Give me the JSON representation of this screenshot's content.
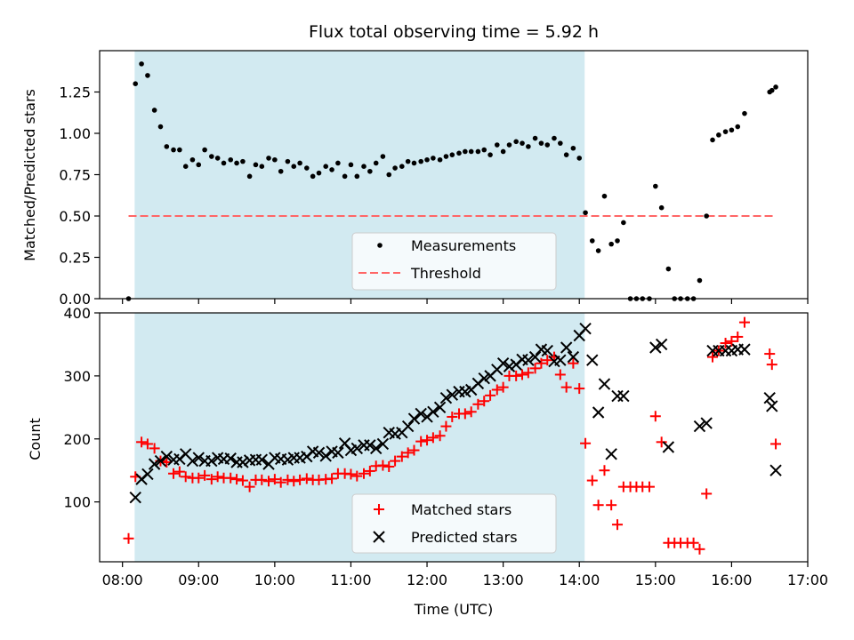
{
  "chart_data": {
    "type": "scatter",
    "title": "Flux total observing time = 5.92 h",
    "xlabel": "Time (UTC)",
    "x_ticks": [
      "08:00",
      "09:00",
      "10:00",
      "11:00",
      "12:00",
      "13:00",
      "14:00",
      "15:00",
      "16:00",
      "17:00"
    ],
    "xlim_hours": [
      7.7,
      17.0
    ],
    "shaded_interval_hours": [
      8.16,
      14.07
    ],
    "colors": {
      "shade": "#add8e6",
      "measurements": "#000000",
      "threshold": "#ff6666",
      "matched": "#ff0000",
      "predicted": "#000000"
    },
    "top_panel": {
      "ylabel": "Matched/Predicted stars",
      "ylim": [
        0,
        1.5
      ],
      "y_ticks": [
        "0.00",
        "0.25",
        "0.50",
        "0.75",
        "1.00",
        "1.25"
      ],
      "threshold": 0.5,
      "threshold_x_range": [
        8.08,
        16.58
      ],
      "legend": {
        "location": "lower center",
        "entries": [
          "Measurements",
          "Threshold"
        ]
      },
      "measurements": [
        [
          8.08,
          0.0
        ],
        [
          8.17,
          1.3
        ],
        [
          8.25,
          1.42
        ],
        [
          8.33,
          1.35
        ],
        [
          8.42,
          1.14
        ],
        [
          8.5,
          1.04
        ],
        [
          8.58,
          0.92
        ],
        [
          8.67,
          0.9
        ],
        [
          8.75,
          0.9
        ],
        [
          8.83,
          0.8
        ],
        [
          8.92,
          0.84
        ],
        [
          9.0,
          0.81
        ],
        [
          9.08,
          0.9
        ],
        [
          9.17,
          0.86
        ],
        [
          9.25,
          0.85
        ],
        [
          9.33,
          0.82
        ],
        [
          9.42,
          0.84
        ],
        [
          9.5,
          0.82
        ],
        [
          9.58,
          0.83
        ],
        [
          9.67,
          0.74
        ],
        [
          9.75,
          0.81
        ],
        [
          9.83,
          0.8
        ],
        [
          9.92,
          0.85
        ],
        [
          10.0,
          0.84
        ],
        [
          10.08,
          0.77
        ],
        [
          10.17,
          0.83
        ],
        [
          10.25,
          0.8
        ],
        [
          10.33,
          0.82
        ],
        [
          10.42,
          0.79
        ],
        [
          10.5,
          0.74
        ],
        [
          10.58,
          0.76
        ],
        [
          10.67,
          0.8
        ],
        [
          10.75,
          0.78
        ],
        [
          10.83,
          0.82
        ],
        [
          10.92,
          0.74
        ],
        [
          11.0,
          0.81
        ],
        [
          11.08,
          0.74
        ],
        [
          11.17,
          0.8
        ],
        [
          11.25,
          0.77
        ],
        [
          11.33,
          0.82
        ],
        [
          11.42,
          0.86
        ],
        [
          11.5,
          0.75
        ],
        [
          11.58,
          0.79
        ],
        [
          11.67,
          0.8
        ],
        [
          11.75,
          0.83
        ],
        [
          11.83,
          0.82
        ],
        [
          11.92,
          0.83
        ],
        [
          12.0,
          0.84
        ],
        [
          12.08,
          0.85
        ],
        [
          12.17,
          0.84
        ],
        [
          12.25,
          0.86
        ],
        [
          12.33,
          0.87
        ],
        [
          12.42,
          0.88
        ],
        [
          12.5,
          0.89
        ],
        [
          12.58,
          0.89
        ],
        [
          12.67,
          0.89
        ],
        [
          12.75,
          0.9
        ],
        [
          12.83,
          0.87
        ],
        [
          12.92,
          0.93
        ],
        [
          13.0,
          0.89
        ],
        [
          13.08,
          0.93
        ],
        [
          13.17,
          0.95
        ],
        [
          13.25,
          0.94
        ],
        [
          13.33,
          0.92
        ],
        [
          13.42,
          0.97
        ],
        [
          13.5,
          0.94
        ],
        [
          13.58,
          0.93
        ],
        [
          13.67,
          0.97
        ],
        [
          13.75,
          0.94
        ],
        [
          13.83,
          0.87
        ],
        [
          13.92,
          0.91
        ],
        [
          14.0,
          0.85
        ],
        [
          14.08,
          0.52
        ],
        [
          14.17,
          0.35
        ],
        [
          14.25,
          0.29
        ],
        [
          14.33,
          0.62
        ],
        [
          14.42,
          0.33
        ],
        [
          14.5,
          0.35
        ],
        [
          14.58,
          0.46
        ],
        [
          14.67,
          0.0
        ],
        [
          14.75,
          0.0
        ],
        [
          14.83,
          0.0
        ],
        [
          14.92,
          0.0
        ],
        [
          15.0,
          0.68
        ],
        [
          15.08,
          0.55
        ],
        [
          15.17,
          0.18
        ],
        [
          15.25,
          0.0
        ],
        [
          15.33,
          0.0
        ],
        [
          15.42,
          0.0
        ],
        [
          15.5,
          0.0
        ],
        [
          15.58,
          0.11
        ],
        [
          15.67,
          0.5
        ],
        [
          15.75,
          0.96
        ],
        [
          15.83,
          0.99
        ],
        [
          15.92,
          1.01
        ],
        [
          16.0,
          1.02
        ],
        [
          16.08,
          1.04
        ],
        [
          16.17,
          1.12
        ],
        [
          16.5,
          1.25
        ],
        [
          16.53,
          1.26
        ],
        [
          16.58,
          1.28
        ]
      ]
    },
    "bottom_panel": {
      "ylabel": "Count",
      "ylim": [
        5,
        400
      ],
      "y_ticks": [
        "100",
        "200",
        "300",
        "400"
      ],
      "legend": {
        "location": "lower center",
        "entries": [
          "Matched stars",
          "Predicted stars"
        ]
      },
      "matched": [
        [
          8.08,
          42
        ],
        [
          8.17,
          140
        ],
        [
          8.25,
          195
        ],
        [
          8.33,
          192
        ],
        [
          8.42,
          185
        ],
        [
          8.5,
          165
        ],
        [
          8.58,
          163
        ],
        [
          8.67,
          145
        ],
        [
          8.75,
          148
        ],
        [
          8.83,
          140
        ],
        [
          8.92,
          138
        ],
        [
          9.0,
          138
        ],
        [
          9.08,
          142
        ],
        [
          9.17,
          136
        ],
        [
          9.25,
          140
        ],
        [
          9.33,
          138
        ],
        [
          9.42,
          138
        ],
        [
          9.5,
          136
        ],
        [
          9.58,
          134
        ],
        [
          9.67,
          124
        ],
        [
          9.75,
          135
        ],
        [
          9.83,
          135
        ],
        [
          9.92,
          133
        ],
        [
          10.0,
          136
        ],
        [
          10.08,
          131
        ],
        [
          10.17,
          135
        ],
        [
          10.25,
          133
        ],
        [
          10.33,
          135
        ],
        [
          10.42,
          137
        ],
        [
          10.5,
          135
        ],
        [
          10.58,
          135
        ],
        [
          10.67,
          136
        ],
        [
          10.75,
          137
        ],
        [
          10.83,
          145
        ],
        [
          10.92,
          145
        ],
        [
          11.0,
          144
        ],
        [
          11.08,
          141
        ],
        [
          11.17,
          145
        ],
        [
          11.25,
          149
        ],
        [
          11.33,
          157
        ],
        [
          11.42,
          158
        ],
        [
          11.5,
          156
        ],
        [
          11.58,
          165
        ],
        [
          11.67,
          172
        ],
        [
          11.75,
          178
        ],
        [
          11.83,
          182
        ],
        [
          11.92,
          196
        ],
        [
          12.0,
          198
        ],
        [
          12.08,
          202
        ],
        [
          12.17,
          205
        ],
        [
          12.25,
          220
        ],
        [
          12.33,
          235
        ],
        [
          12.42,
          240
        ],
        [
          12.5,
          240
        ],
        [
          12.58,
          243
        ],
        [
          12.67,
          255
        ],
        [
          12.75,
          260
        ],
        [
          12.83,
          269
        ],
        [
          12.92,
          278
        ],
        [
          13.0,
          282
        ],
        [
          13.08,
          300
        ],
        [
          13.17,
          300
        ],
        [
          13.25,
          302
        ],
        [
          13.33,
          305
        ],
        [
          13.42,
          312
        ],
        [
          13.5,
          320
        ],
        [
          13.58,
          325
        ],
        [
          13.67,
          330
        ],
        [
          13.75,
          302
        ],
        [
          13.83,
          282
        ],
        [
          13.92,
          320
        ],
        [
          14.0,
          280
        ],
        [
          14.08,
          193
        ],
        [
          14.17,
          134
        ],
        [
          14.25,
          95
        ],
        [
          14.33,
          150
        ],
        [
          14.42,
          95
        ],
        [
          14.5,
          64
        ],
        [
          14.58,
          124
        ],
        [
          14.67,
          124
        ],
        [
          14.75,
          124
        ],
        [
          14.83,
          124
        ],
        [
          14.92,
          124
        ],
        [
          15.0,
          236
        ],
        [
          15.08,
          195
        ],
        [
          15.17,
          35
        ],
        [
          15.25,
          35
        ],
        [
          15.33,
          35
        ],
        [
          15.42,
          35
        ],
        [
          15.5,
          35
        ],
        [
          15.58,
          25
        ],
        [
          15.67,
          113
        ],
        [
          15.75,
          330
        ],
        [
          15.83,
          340
        ],
        [
          15.92,
          352
        ],
        [
          16.0,
          355
        ],
        [
          16.08,
          362
        ],
        [
          16.17,
          385
        ],
        [
          16.5,
          335
        ],
        [
          16.53,
          318
        ],
        [
          16.58,
          192
        ]
      ],
      "predicted": [
        [
          8.17,
          107
        ],
        [
          8.25,
          136
        ],
        [
          8.33,
          144
        ],
        [
          8.42,
          160
        ],
        [
          8.5,
          165
        ],
        [
          8.58,
          172
        ],
        [
          8.67,
          167
        ],
        [
          8.75,
          168
        ],
        [
          8.83,
          176
        ],
        [
          8.92,
          165
        ],
        [
          9.0,
          170
        ],
        [
          9.08,
          165
        ],
        [
          9.17,
          165
        ],
        [
          9.25,
          170
        ],
        [
          9.33,
          168
        ],
        [
          9.42,
          169
        ],
        [
          9.5,
          163
        ],
        [
          9.58,
          163
        ],
        [
          9.67,
          166
        ],
        [
          9.75,
          167
        ],
        [
          9.83,
          167
        ],
        [
          9.92,
          160
        ],
        [
          10.0,
          170
        ],
        [
          10.08,
          168
        ],
        [
          10.17,
          167
        ],
        [
          10.25,
          170
        ],
        [
          10.33,
          170
        ],
        [
          10.42,
          172
        ],
        [
          10.5,
          180
        ],
        [
          10.58,
          178
        ],
        [
          10.67,
          173
        ],
        [
          10.75,
          180
        ],
        [
          10.83,
          178
        ],
        [
          10.92,
          193
        ],
        [
          11.0,
          182
        ],
        [
          11.08,
          185
        ],
        [
          11.17,
          190
        ],
        [
          11.25,
          190
        ],
        [
          11.33,
          185
        ],
        [
          11.42,
          192
        ],
        [
          11.5,
          210
        ],
        [
          11.58,
          208
        ],
        [
          11.67,
          210
        ],
        [
          11.75,
          220
        ],
        [
          11.83,
          232
        ],
        [
          11.92,
          240
        ],
        [
          12.0,
          235
        ],
        [
          12.08,
          243
        ],
        [
          12.17,
          250
        ],
        [
          12.25,
          265
        ],
        [
          12.33,
          270
        ],
        [
          12.42,
          275
        ],
        [
          12.5,
          275
        ],
        [
          12.58,
          278
        ],
        [
          12.67,
          288
        ],
        [
          12.75,
          296
        ],
        [
          12.83,
          300
        ],
        [
          12.92,
          310
        ],
        [
          13.0,
          320
        ],
        [
          13.08,
          315
        ],
        [
          13.17,
          318
        ],
        [
          13.25,
          326
        ],
        [
          13.33,
          325
        ],
        [
          13.42,
          330
        ],
        [
          13.5,
          342
        ],
        [
          13.58,
          340
        ],
        [
          13.67,
          323
        ],
        [
          13.75,
          325
        ],
        [
          13.83,
          345
        ],
        [
          13.92,
          330
        ],
        [
          14.0,
          364
        ],
        [
          14.08,
          375
        ],
        [
          14.17,
          325
        ],
        [
          14.25,
          242
        ],
        [
          14.33,
          287
        ],
        [
          14.42,
          176
        ],
        [
          14.5,
          268
        ],
        [
          14.58,
          268
        ],
        [
          15.0,
          345
        ],
        [
          15.08,
          350
        ],
        [
          15.17,
          187
        ],
        [
          15.58,
          220
        ],
        [
          15.67,
          225
        ],
        [
          15.75,
          340
        ],
        [
          15.83,
          340
        ],
        [
          15.92,
          340
        ],
        [
          16.0,
          340
        ],
        [
          16.08,
          342
        ],
        [
          16.17,
          342
        ],
        [
          16.5,
          265
        ],
        [
          16.53,
          252
        ],
        [
          16.58,
          150
        ]
      ]
    }
  }
}
